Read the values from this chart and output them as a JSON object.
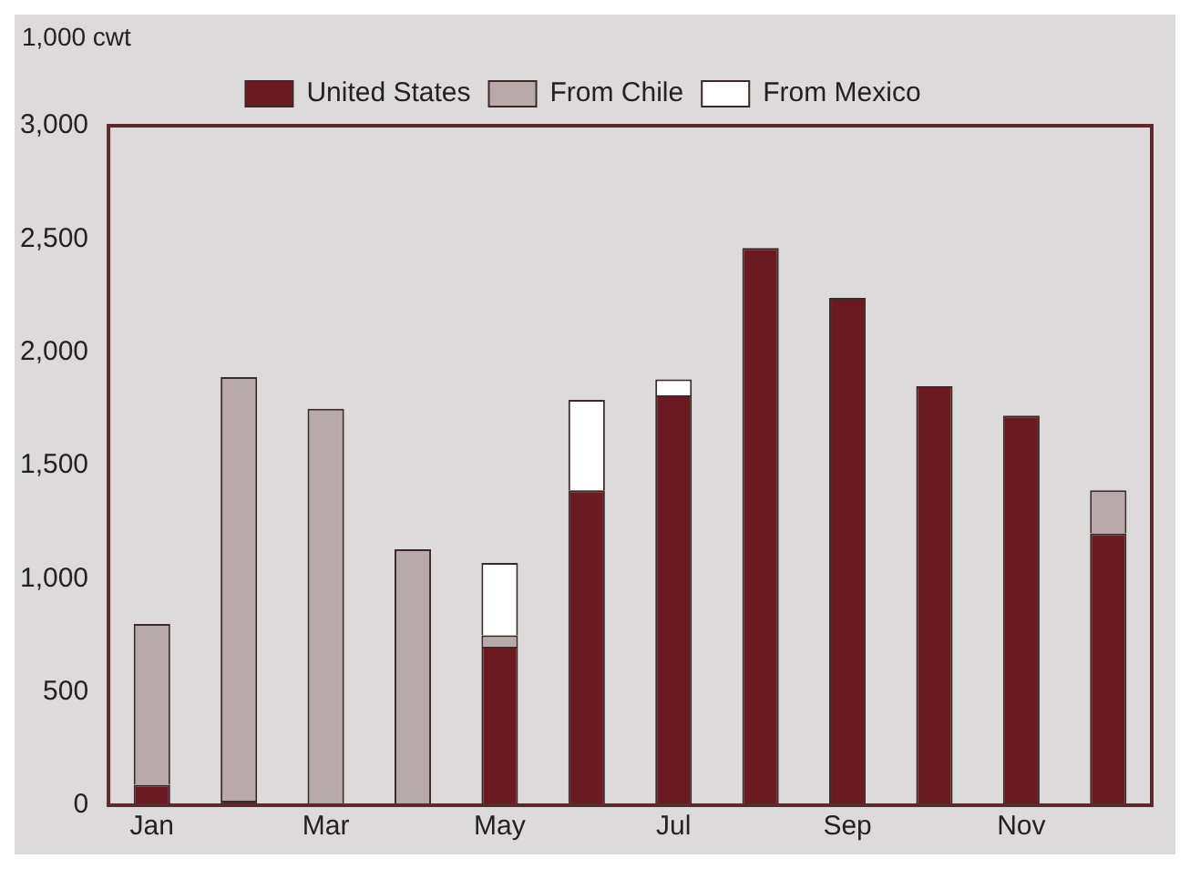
{
  "chart_data": {
    "type": "bar",
    "ylabel": "1,000 cwt",
    "stacked": true,
    "legend": "top",
    "grid": false,
    "categories": [
      "Jan",
      null,
      "Mar",
      null,
      "May",
      null,
      "Jul",
      null,
      "Sep",
      null,
      "Nov",
      null
    ],
    "ylim": [
      0,
      3000
    ],
    "yticks": [
      0,
      500,
      {
        "value": 1000,
        "label": "1,000"
      },
      {
        "value": 1500,
        "label": "1,500"
      },
      {
        "value": 2000,
        "label": "2,000"
      },
      {
        "value": 2500,
        "label": "2,500"
      },
      {
        "value": 3000,
        "label": "3,000"
      }
    ],
    "series": [
      {
        "name": "United States",
        "color": "#6b1a22",
        "values": [
          90,
          20,
          0,
          0,
          700,
          1390,
          1810,
          2460,
          2240,
          1850,
          1720,
          1200
        ]
      },
      {
        "name": "From Chile",
        "color": "#b8a9ab",
        "values": [
          710,
          1870,
          1750,
          1130,
          50,
          0,
          0,
          0,
          0,
          0,
          0,
          190
        ]
      },
      {
        "name": "From Mexico",
        "color": "#ffffff",
        "values": [
          0,
          0,
          0,
          0,
          320,
          400,
          70,
          0,
          0,
          0,
          0,
          0
        ]
      }
    ]
  }
}
